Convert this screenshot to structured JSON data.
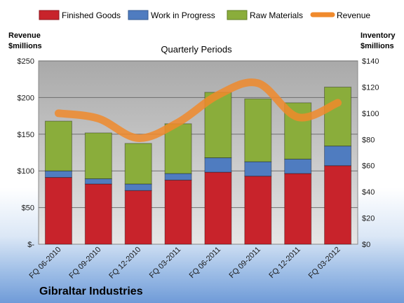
{
  "chart_data": {
    "type": "bar",
    "title": "Quarterly Periods",
    "company": "Gibraltar Industries",
    "left_axis": {
      "label_line1": "Revenue",
      "label_line2": "$millions",
      "range": [
        0,
        250
      ],
      "ticks": [
        "$-",
        "$50",
        "$100",
        "$150",
        "$200",
        "$250"
      ]
    },
    "right_axis": {
      "label_line1": "Inventory",
      "label_line2": "$millions",
      "range": [
        0,
        140
      ],
      "ticks": [
        "$0",
        "$20",
        "$40",
        "$60",
        "$80",
        "$100",
        "$120",
        "$140"
      ]
    },
    "categories": [
      "FQ 06-2010",
      "FQ 09-2010",
      "FQ 12-2010",
      "FQ 03-2011",
      "FQ 06-2011",
      "FQ 09-2011",
      "FQ 12-2011",
      "FQ 03-2012"
    ],
    "series": [
      {
        "name": "Finished Goods",
        "kind": "stacked-bar",
        "axis": "right",
        "color": "#c8232b",
        "values": [
          51,
          46,
          41,
          49,
          55,
          52,
          54,
          60
        ]
      },
      {
        "name": "Work in Progress",
        "kind": "stacked-bar",
        "axis": "right",
        "color": "#4f7cc0",
        "values": [
          5,
          4,
          5,
          5,
          11,
          11,
          11,
          15
        ]
      },
      {
        "name": "Raw Materials",
        "kind": "stacked-bar",
        "axis": "right",
        "color": "#8aad3b",
        "values": [
          38,
          35,
          31,
          38,
          50,
          48,
          43,
          45
        ]
      },
      {
        "name": "Revenue",
        "kind": "line",
        "axis": "right",
        "color": "#f08a2c",
        "values": [
          100,
          96,
          81,
          93,
          114,
          123,
          97,
          108
        ]
      }
    ],
    "grid": true,
    "legend_position": "top"
  }
}
